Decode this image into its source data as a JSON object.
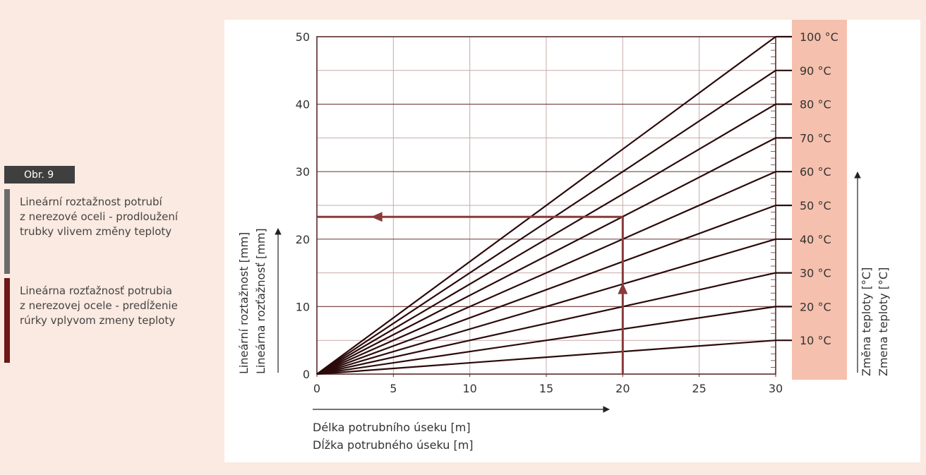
{
  "figure": {
    "tag": "Obr. 9",
    "caption_cz": [
      "Lineární roztažnost potrubí",
      "z nerezové oceli - prodloužení",
      "trubky vlivem změny teploty"
    ],
    "caption_sk": [
      "Lineárna rozťažnosť potrubia",
      "z nerezovej ocele - predĺženie",
      "rúrky vplyvom zmeny teploty"
    ]
  },
  "colors": {
    "page_bg": "#fbeae1",
    "temp_band": "#f5c0ad",
    "lines": "#2b0a0a",
    "highlight": "#8a3a3a",
    "grid": "#c9a9a9"
  },
  "chart_data": {
    "type": "line",
    "title": "",
    "xlabel": [
      "Délka potrubního úseku [m]",
      "Dĺžka potrubného úseku [m]"
    ],
    "ylabel": [
      "Lineární roztažnost [mm]",
      "Lineárna rozťažnosť [mm]"
    ],
    "right_label": [
      "Změna teploty [°C]",
      "Zmena teploty [°C]"
    ],
    "xlim": [
      0,
      30
    ],
    "ylim": [
      0,
      50
    ],
    "x_ticks": [
      0,
      5,
      10,
      15,
      20,
      25,
      30
    ],
    "y_ticks": [
      0,
      10,
      20,
      30,
      40,
      50
    ],
    "grid": true,
    "series": [
      {
        "name": "10 °C",
        "x": [
          0,
          30
        ],
        "y": [
          0,
          5
        ]
      },
      {
        "name": "20 °C",
        "x": [
          0,
          30
        ],
        "y": [
          0,
          10
        ]
      },
      {
        "name": "30 °C",
        "x": [
          0,
          30
        ],
        "y": [
          0,
          15
        ]
      },
      {
        "name": "40 °C",
        "x": [
          0,
          30
        ],
        "y": [
          0,
          20
        ]
      },
      {
        "name": "50 °C",
        "x": [
          0,
          30
        ],
        "y": [
          0,
          25
        ]
      },
      {
        "name": "60 °C",
        "x": [
          0,
          30
        ],
        "y": [
          0,
          30
        ]
      },
      {
        "name": "70 °C",
        "x": [
          0,
          30
        ],
        "y": [
          0,
          35
        ]
      },
      {
        "name": "80 °C",
        "x": [
          0,
          30
        ],
        "y": [
          0,
          40
        ]
      },
      {
        "name": "90 °C",
        "x": [
          0,
          30
        ],
        "y": [
          0,
          45
        ]
      },
      {
        "name": "100 °C",
        "x": [
          0,
          30
        ],
        "y": [
          0,
          50
        ]
      }
    ],
    "annotation": {
      "x": 20,
      "y": 23.3
    }
  }
}
